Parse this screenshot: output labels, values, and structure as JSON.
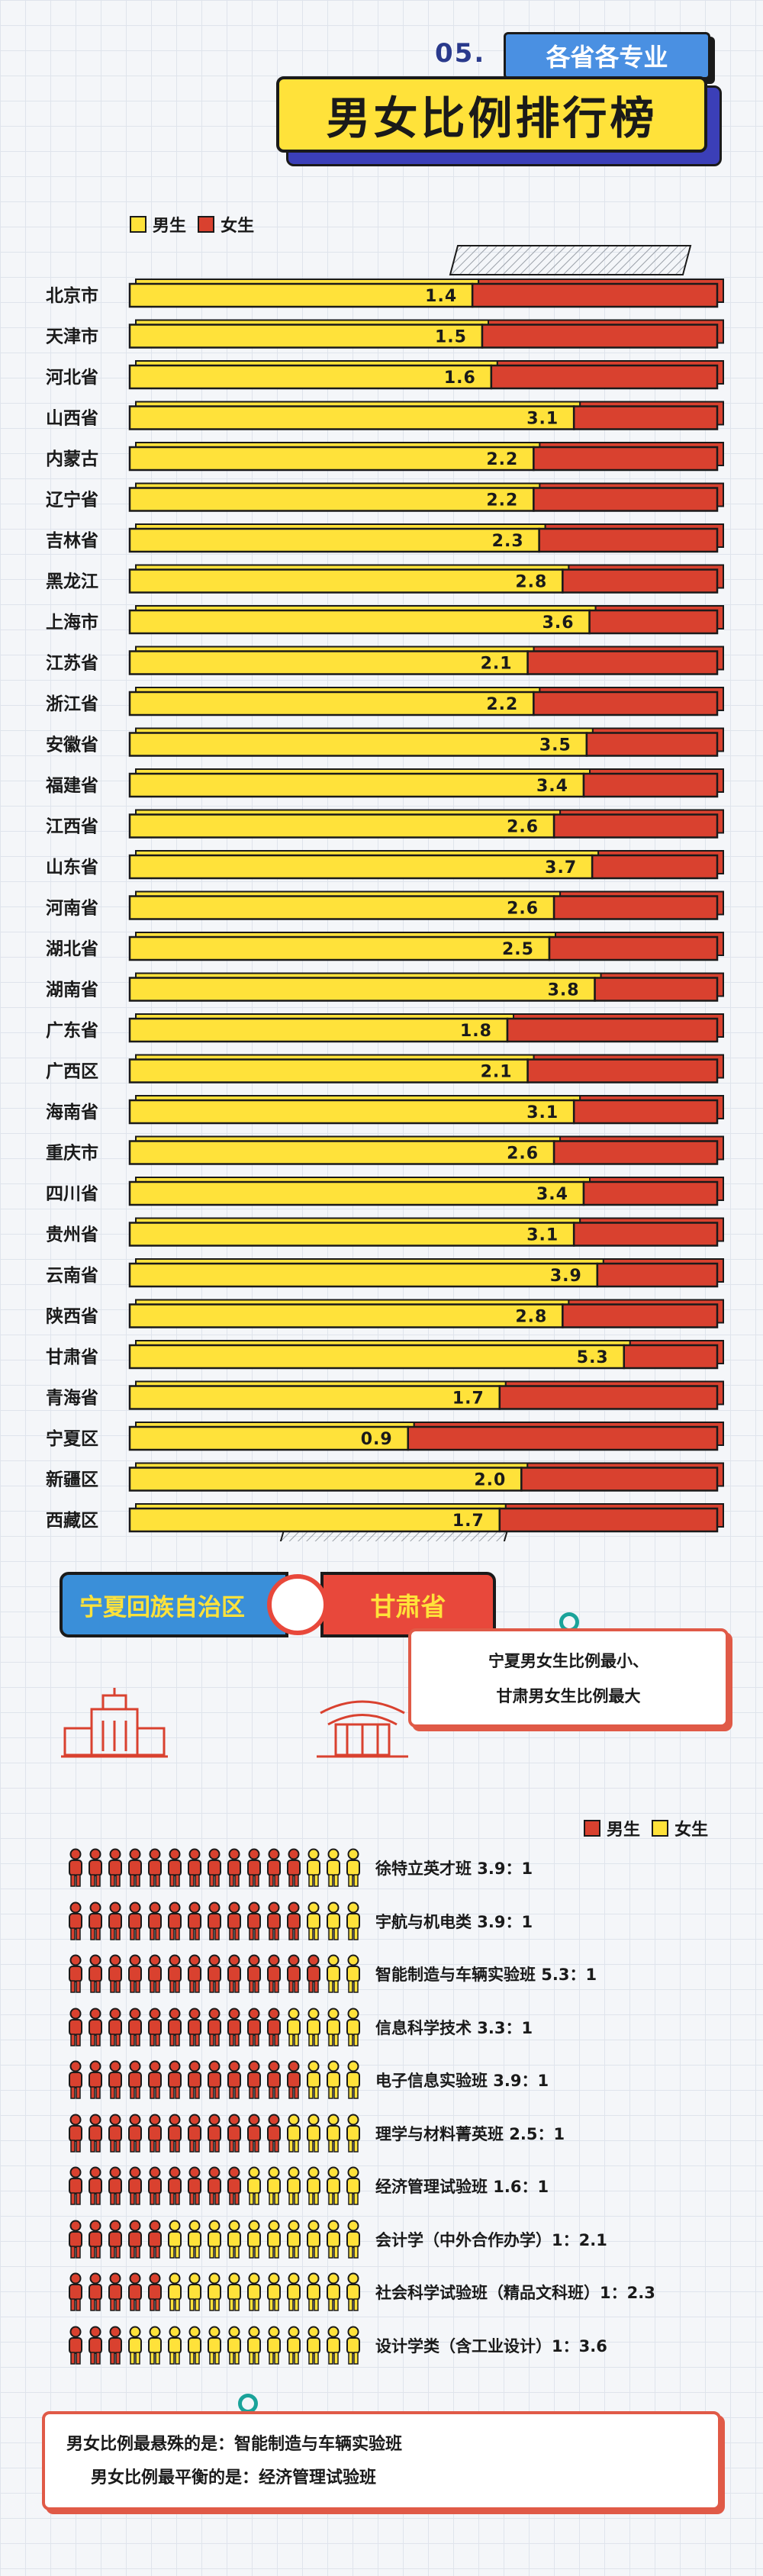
{
  "header": {
    "number": "05.",
    "tag": "各省各专业",
    "title": "男女比例排行榜"
  },
  "legend": {
    "male": "男生",
    "female": "女生"
  },
  "colors": {
    "male": "#ffe23a",
    "female": "#d9412f",
    "outline": "#1a1a1a"
  },
  "chart_data": {
    "type": "bar",
    "orientation": "horizontal",
    "stacked": true,
    "xlabel": "",
    "ylabel": "",
    "series": [
      {
        "name": "男生"
      },
      {
        "name": "女生"
      }
    ],
    "categories": [
      "北京市",
      "天津市",
      "河北省",
      "山西省",
      "内蒙古",
      "辽宁省",
      "吉林省",
      "黑龙江",
      "上海市",
      "江苏省",
      "浙江省",
      "安徽省",
      "福建省",
      "江西省",
      "山东省",
      "河南省",
      "湖北省",
      "湖南省",
      "广东省",
      "广西区",
      "海南省",
      "重庆市",
      "四川省",
      "贵州省",
      "云南省",
      "陕西省",
      "甘肃省",
      "青海省",
      "宁夏区",
      "新疆区",
      "西藏区"
    ],
    "values": [
      1.4,
      1.5,
      1.6,
      3.1,
      2.2,
      2.2,
      2.3,
      2.8,
      3.6,
      2.1,
      2.2,
      3.5,
      3.4,
      2.6,
      3.7,
      2.6,
      2.5,
      3.8,
      1.8,
      2.1,
      3.1,
      2.6,
      3.4,
      3.1,
      3.9,
      2.8,
      5.3,
      1.7,
      0.9,
      2.0,
      1.7
    ],
    "labels": [
      "1.4",
      "1.5",
      "1.6",
      "3.1",
      "2.2",
      "2.2",
      "2.3",
      "2.8",
      "3.6",
      "2.1",
      "2.2",
      "3.5",
      "3.4",
      "2.6",
      "3.7",
      "2.6",
      "2.5",
      "3.8",
      "1.8",
      "2.1",
      "3.1",
      "2.6",
      "3.4",
      "3.1",
      "3.9",
      "2.8",
      "5.3",
      "1.7",
      "0.9",
      "2.0",
      "1.7"
    ]
  },
  "highlight": {
    "min_province": "宁夏回族自治区",
    "max_province": "甘肃省",
    "note_line1": "宁夏男女生比例最小、",
    "note_line2": "甘肃男女生比例最大"
  },
  "majors": [
    {
      "label": "徐特立英才班  3.9：1",
      "male": 12,
      "female": 3
    },
    {
      "label": "宇航与机电类  3.9：1",
      "male": 12,
      "female": 3
    },
    {
      "label": "智能制造与车辆实验班  5.3：1",
      "male": 13,
      "female": 2
    },
    {
      "label": "信息科学技术  3.3：1",
      "male": 11,
      "female": 4
    },
    {
      "label": "电子信息实验班  3.9：1",
      "male": 12,
      "female": 3
    },
    {
      "label": "理学与材料菁英班  2.5：1",
      "male": 11,
      "female": 4
    },
    {
      "label": "经济管理试验班  1.6：1",
      "male": 9,
      "female": 6
    },
    {
      "label": "会计学（中外合作办学）1：2.1",
      "male": 5,
      "female": 10
    },
    {
      "label": "社会科学试验班（精品文科班）1：2.3",
      "male": 5,
      "female": 10
    },
    {
      "label": "设计学类（含工业设计）1：3.6",
      "male": 3,
      "female": 12
    }
  ],
  "summary": {
    "line1": "男女比例最悬殊的是：智能制造与车辆实验班",
    "line2": "男女比例最平衡的是：经济管理试验班"
  }
}
